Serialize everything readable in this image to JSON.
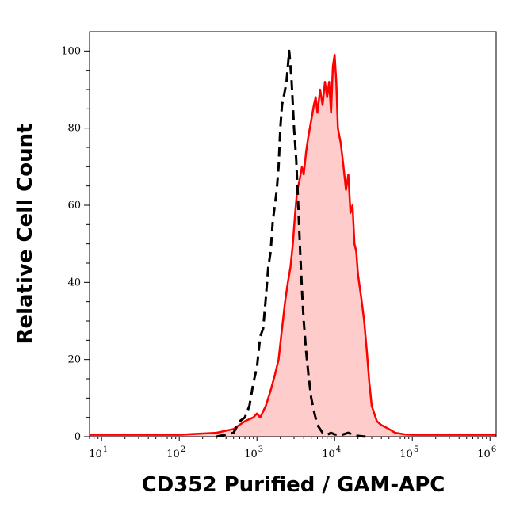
{
  "chart_data": {
    "type": "area",
    "title": "",
    "xlabel": "CD352 Purified / GAM-APC",
    "ylabel": "Relative Cell Count",
    "x_scale": "log",
    "xlim": [
      7,
      1200000
    ],
    "ylim": [
      0,
      105
    ],
    "x_ticks": [
      {
        "base": "10",
        "exp": "1",
        "value": 10
      },
      {
        "base": "10",
        "exp": "2",
        "value": 100
      },
      {
        "base": "10",
        "exp": "3",
        "value": 1000
      },
      {
        "base": "10",
        "exp": "4",
        "value": 10000
      },
      {
        "base": "10",
        "exp": "5",
        "value": 100000
      },
      {
        "base": "10",
        "exp": "6",
        "value": 1000000
      }
    ],
    "y_ticks": [
      {
        "label": "0",
        "value": 0
      },
      {
        "label": "20",
        "value": 20
      },
      {
        "label": "40",
        "value": 40
      },
      {
        "label": "60",
        "value": 60
      },
      {
        "label": "80",
        "value": 80
      },
      {
        "label": "100",
        "value": 100
      }
    ],
    "series": [
      {
        "style": "filled",
        "color": "#ff0000",
        "fill": "#ffcccc",
        "points": [
          [
            7,
            0.5
          ],
          [
            100,
            0.5
          ],
          [
            300,
            1
          ],
          [
            500,
            2
          ],
          [
            700,
            4
          ],
          [
            900,
            5
          ],
          [
            1000,
            6
          ],
          [
            1100,
            5
          ],
          [
            1300,
            8
          ],
          [
            1500,
            12
          ],
          [
            1700,
            16
          ],
          [
            1900,
            20
          ],
          [
            2100,
            28
          ],
          [
            2300,
            35
          ],
          [
            2500,
            40
          ],
          [
            2700,
            44
          ],
          [
            2900,
            50
          ],
          [
            3100,
            58
          ],
          [
            3300,
            64
          ],
          [
            3500,
            66
          ],
          [
            3800,
            70
          ],
          [
            4000,
            68
          ],
          [
            4300,
            74
          ],
          [
            4600,
            78
          ],
          [
            5000,
            82
          ],
          [
            5400,
            86
          ],
          [
            5700,
            88
          ],
          [
            6000,
            84
          ],
          [
            6500,
            90
          ],
          [
            7000,
            86
          ],
          [
            7500,
            92
          ],
          [
            8000,
            88
          ],
          [
            8500,
            92
          ],
          [
            9000,
            84
          ],
          [
            9500,
            96
          ],
          [
            10000,
            99
          ],
          [
            10500,
            92
          ],
          [
            11000,
            80
          ],
          [
            12000,
            76
          ],
          [
            13000,
            70
          ],
          [
            14000,
            64
          ],
          [
            15000,
            68
          ],
          [
            16000,
            58
          ],
          [
            17000,
            60
          ],
          [
            18000,
            50
          ],
          [
            19000,
            48
          ],
          [
            20000,
            42
          ],
          [
            22000,
            36
          ],
          [
            24000,
            30
          ],
          [
            26000,
            22
          ],
          [
            28000,
            14
          ],
          [
            30000,
            8
          ],
          [
            35000,
            4
          ],
          [
            40000,
            3
          ],
          [
            50000,
            2
          ],
          [
            60000,
            1
          ],
          [
            80000,
            0.6
          ],
          [
            100000,
            0.5
          ],
          [
            400000,
            0.5
          ],
          [
            1200000,
            0.5
          ]
        ]
      },
      {
        "style": "dashed",
        "color": "#000000",
        "points": [
          [
            300,
            0
          ],
          [
            500,
            1
          ],
          [
            600,
            4
          ],
          [
            700,
            5
          ],
          [
            800,
            8
          ],
          [
            900,
            14
          ],
          [
            1000,
            18
          ],
          [
            1100,
            26
          ],
          [
            1200,
            28
          ],
          [
            1300,
            36
          ],
          [
            1400,
            44
          ],
          [
            1500,
            48
          ],
          [
            1600,
            56
          ],
          [
            1700,
            60
          ],
          [
            1800,
            64
          ],
          [
            1900,
            70
          ],
          [
            2000,
            80
          ],
          [
            2100,
            86
          ],
          [
            2200,
            88
          ],
          [
            2300,
            90
          ],
          [
            2400,
            92
          ],
          [
            2500,
            96
          ],
          [
            2600,
            100
          ],
          [
            2700,
            96
          ],
          [
            2800,
            92
          ],
          [
            2900,
            86
          ],
          [
            3000,
            80
          ],
          [
            3200,
            72
          ],
          [
            3400,
            60
          ],
          [
            3600,
            48
          ],
          [
            3800,
            38
          ],
          [
            4000,
            30
          ],
          [
            4300,
            22
          ],
          [
            4600,
            16
          ],
          [
            5000,
            10
          ],
          [
            5500,
            6
          ],
          [
            6000,
            3
          ],
          [
            7000,
            1
          ],
          [
            8000,
            0.5
          ],
          [
            9000,
            1
          ],
          [
            10000,
            0.6
          ],
          [
            12000,
            0.4
          ],
          [
            15000,
            1
          ],
          [
            18000,
            0.3
          ],
          [
            25000,
            0
          ]
        ]
      }
    ]
  }
}
